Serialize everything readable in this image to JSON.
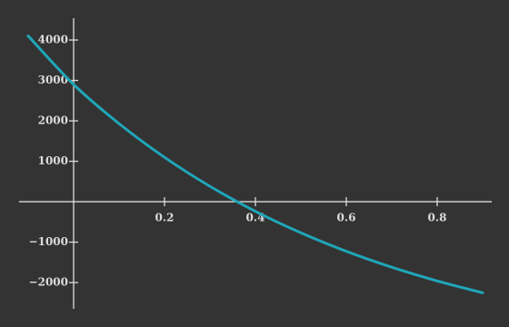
{
  "chart_data": {
    "type": "line",
    "x": [
      -0.1,
      0,
      0.1,
      0.2,
      0.3,
      0.4,
      0.5,
      0.6,
      0.7,
      0.8,
      0.9
    ],
    "series": [
      {
        "color": "#1fa6b8",
        "values": [
          4100,
          2900,
          1931,
          1098,
          380,
          -238,
          -769,
          -1227,
          -1621,
          -1960,
          -2253
        ]
      }
    ],
    "xlim": [
      -0.12,
      0.92
    ],
    "ylim": [
      -2650,
      4540
    ],
    "xticks": [
      0.2,
      0.4,
      0.6,
      0.8
    ],
    "yticks": [
      {
        "value": -2000,
        "label": "−2000"
      },
      {
        "value": -1000,
        "label": "−1000"
      },
      1000,
      2000,
      3000,
      4000
    ],
    "background": "#333333",
    "axis_color": "#dcdcdc"
  }
}
